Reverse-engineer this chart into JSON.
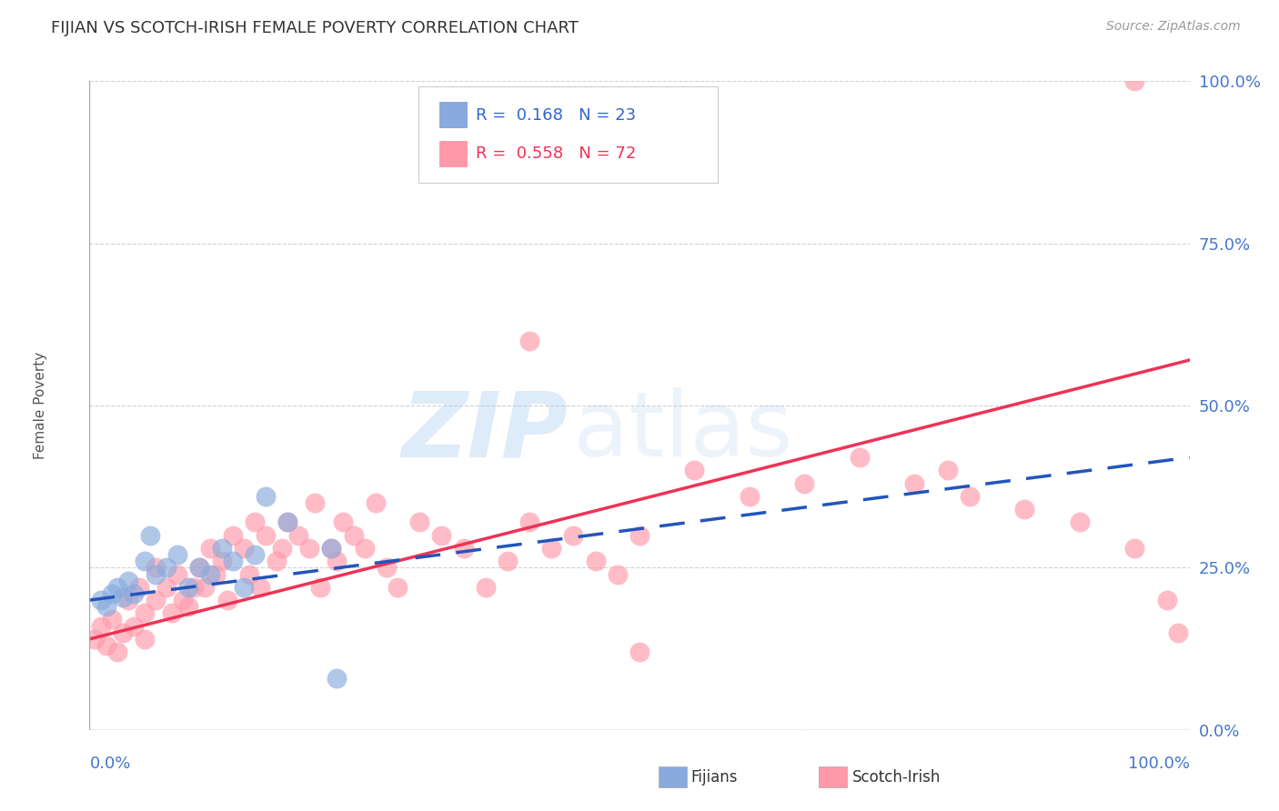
{
  "title": "FIJIAN VS SCOTCH-IRISH FEMALE POVERTY CORRELATION CHART",
  "source": "Source: ZipAtlas.com",
  "ylabel": "Female Poverty",
  "ytick_labels": [
    "0.0%",
    "25.0%",
    "50.0%",
    "75.0%",
    "100.0%"
  ],
  "ytick_positions": [
    0,
    25,
    50,
    75,
    100
  ],
  "xlim": [
    0,
    100
  ],
  "ylim": [
    0,
    100
  ],
  "fijian_color": "#88AADD",
  "scotch_color": "#FF99AA",
  "fijian_line_color": "#2255BB",
  "scotch_line_color": "#EE3355",
  "legend_r_fijian": "0.168",
  "legend_n_fijian": "23",
  "legend_r_scotch": "0.558",
  "legend_n_scotch": "72",
  "watermark_zip": "ZIP",
  "watermark_atlas": "atlas",
  "background_color": "#FFFFFF",
  "grid_color": "#CCCCCC",
  "axis_color": "#AAAAAA",
  "title_color": "#333333",
  "tick_color": "#4477CC",
  "source_color": "#999999",
  "scotch_intercept": 14.0,
  "scotch_slope": 0.43,
  "fijian_intercept": 20.0,
  "fijian_slope": 0.22,
  "fijian_x": [
    1.0,
    1.5,
    2.0,
    2.5,
    3.0,
    3.5,
    4.0,
    5.0,
    5.5,
    6.0,
    7.0,
    8.0,
    9.0,
    10.0,
    11.0,
    12.0,
    13.0,
    14.0,
    15.0,
    16.0,
    18.0,
    22.0,
    22.5
  ],
  "fijian_y": [
    20.0,
    19.0,
    21.0,
    22.0,
    20.5,
    23.0,
    21.0,
    26.0,
    30.0,
    24.0,
    25.0,
    27.0,
    22.0,
    25.0,
    24.0,
    28.0,
    26.0,
    22.0,
    27.0,
    36.0,
    32.0,
    28.0,
    8.0
  ],
  "scotch_x": [
    0.5,
    1.0,
    1.5,
    2.0,
    2.5,
    3.0,
    3.5,
    4.0,
    4.5,
    5.0,
    5.0,
    6.0,
    6.0,
    7.0,
    7.5,
    8.0,
    8.5,
    9.0,
    9.5,
    10.0,
    10.5,
    11.0,
    11.5,
    12.0,
    12.5,
    13.0,
    14.0,
    14.5,
    15.0,
    15.5,
    16.0,
    17.0,
    17.5,
    18.0,
    19.0,
    20.0,
    20.5,
    21.0,
    22.0,
    22.5,
    23.0,
    24.0,
    25.0,
    26.0,
    27.0,
    28.0,
    30.0,
    32.0,
    34.0,
    36.0,
    38.0,
    40.0,
    42.0,
    44.0,
    46.0,
    48.0,
    50.0,
    55.0,
    60.0,
    65.0,
    70.0,
    75.0,
    78.0,
    80.0,
    85.0,
    90.0,
    95.0,
    98.0,
    99.0,
    40.0,
    50.0,
    95.0
  ],
  "scotch_y": [
    14.0,
    16.0,
    13.0,
    17.0,
    12.0,
    15.0,
    20.0,
    16.0,
    22.0,
    18.0,
    14.0,
    20.0,
    25.0,
    22.0,
    18.0,
    24.0,
    20.0,
    19.0,
    22.0,
    25.0,
    22.0,
    28.0,
    24.0,
    26.0,
    20.0,
    30.0,
    28.0,
    24.0,
    32.0,
    22.0,
    30.0,
    26.0,
    28.0,
    32.0,
    30.0,
    28.0,
    35.0,
    22.0,
    28.0,
    26.0,
    32.0,
    30.0,
    28.0,
    35.0,
    25.0,
    22.0,
    32.0,
    30.0,
    28.0,
    22.0,
    26.0,
    32.0,
    28.0,
    30.0,
    26.0,
    24.0,
    30.0,
    40.0,
    36.0,
    38.0,
    42.0,
    38.0,
    40.0,
    36.0,
    34.0,
    32.0,
    28.0,
    20.0,
    15.0,
    60.0,
    12.0,
    100.0
  ]
}
